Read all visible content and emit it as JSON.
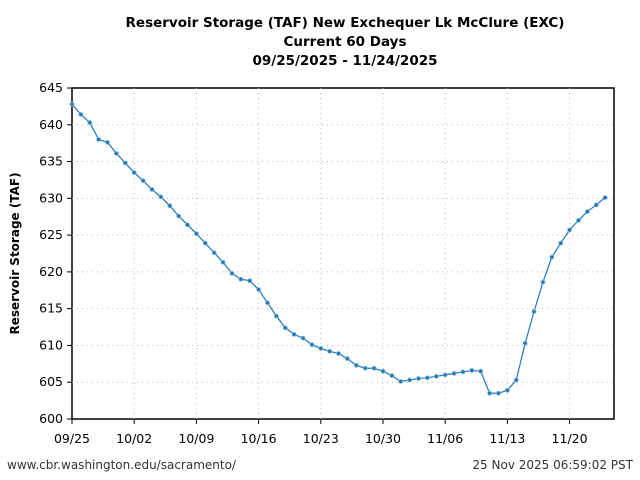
{
  "chart_data": {
    "type": "line",
    "title": [
      "Reservoir Storage (TAF) New Exchequer Lk McClure (EXC)",
      "Current 60 Days",
      "09/25/2025 - 11/24/2025"
    ],
    "xlabel": "",
    "ylabel": "Reservoir Storage (TAF)",
    "ylim": [
      600,
      645
    ],
    "yticks": [
      "600",
      "605",
      "610",
      "615",
      "620",
      "625",
      "630",
      "635",
      "640",
      "645"
    ],
    "xlim": [
      "2025-09-25",
      "2025-11-25"
    ],
    "xticks": [
      {
        "date": "2025-09-25",
        "label": "09/25"
      },
      {
        "date": "2025-10-02",
        "label": "10/02"
      },
      {
        "date": "2025-10-09",
        "label": "10/09"
      },
      {
        "date": "2025-10-16",
        "label": "10/16"
      },
      {
        "date": "2025-10-23",
        "label": "10/23"
      },
      {
        "date": "2025-10-30",
        "label": "10/30"
      },
      {
        "date": "2025-11-06",
        "label": "11/06"
      },
      {
        "date": "2025-11-13",
        "label": "11/13"
      },
      {
        "date": "2025-11-20",
        "label": "11/20"
      }
    ],
    "grid": true,
    "color": "#1f77b4",
    "x": [
      "2025-09-25",
      "2025-09-26",
      "2025-09-27",
      "2025-09-28",
      "2025-09-29",
      "2025-09-30",
      "2025-10-01",
      "2025-10-02",
      "2025-10-03",
      "2025-10-04",
      "2025-10-05",
      "2025-10-06",
      "2025-10-07",
      "2025-10-08",
      "2025-10-09",
      "2025-10-10",
      "2025-10-11",
      "2025-10-12",
      "2025-10-13",
      "2025-10-14",
      "2025-10-15",
      "2025-10-16",
      "2025-10-17",
      "2025-10-18",
      "2025-10-19",
      "2025-10-20",
      "2025-10-21",
      "2025-10-22",
      "2025-10-23",
      "2025-10-24",
      "2025-10-25",
      "2025-10-26",
      "2025-10-27",
      "2025-10-28",
      "2025-10-29",
      "2025-10-30",
      "2025-10-31",
      "2025-11-01",
      "2025-11-02",
      "2025-11-03",
      "2025-11-04",
      "2025-11-05",
      "2025-11-06",
      "2025-11-07",
      "2025-11-08",
      "2025-11-09",
      "2025-11-10",
      "2025-11-11",
      "2025-11-12",
      "2025-11-13",
      "2025-11-14",
      "2025-11-15",
      "2025-11-16",
      "2025-11-17",
      "2025-11-18",
      "2025-11-19",
      "2025-11-20",
      "2025-11-21",
      "2025-11-22",
      "2025-11-23",
      "2025-11-24"
    ],
    "y": [
      642.8,
      641.4,
      640.3,
      638.0,
      637.6,
      636.1,
      634.8,
      633.5,
      632.4,
      631.2,
      630.2,
      629.0,
      627.6,
      626.4,
      625.2,
      623.9,
      622.6,
      621.3,
      619.8,
      619.0,
      618.8,
      617.6,
      615.8,
      614.0,
      612.4,
      611.5,
      611.0,
      610.1,
      609.6,
      609.2,
      608.9,
      608.2,
      607.3,
      606.9,
      606.9,
      606.5,
      605.9,
      605.1,
      605.3,
      605.5,
      605.6,
      605.8,
      606.0,
      606.2,
      606.4,
      606.6,
      606.5,
      603.5,
      603.5,
      603.9,
      605.3,
      610.3,
      614.6,
      618.6,
      622.0,
      623.9,
      625.7,
      627.0,
      628.2,
      629.1,
      630.1
    ]
  },
  "footer": {
    "url": "www.cbr.washington.edu/sacramento/",
    "timestamp": "25 Nov 2025 06:59:02 PST"
  }
}
